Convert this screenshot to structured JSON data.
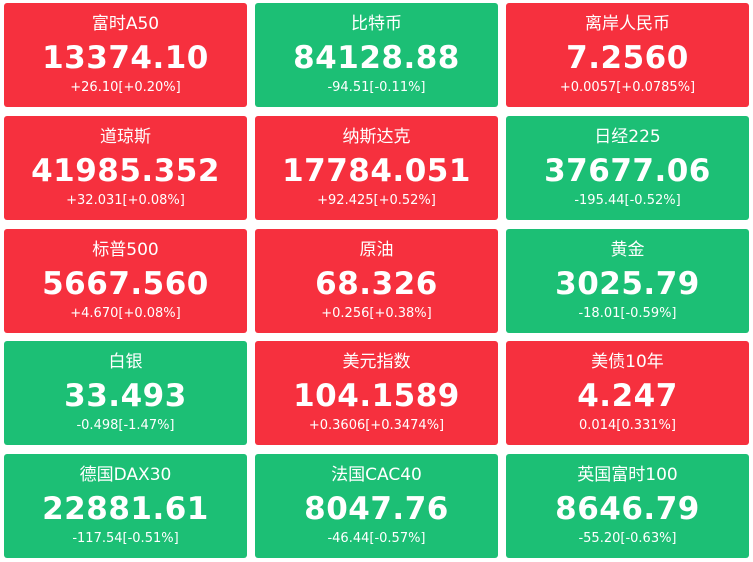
{
  "colors": {
    "up": "#f6303e",
    "down": "#1cbf75",
    "text": "#ffffff"
  },
  "cards": [
    {
      "name": "富时A50",
      "price": "13374.10",
      "change": "+26.10[+0.20%]",
      "trend": "up"
    },
    {
      "name": "比特币",
      "price": "84128.88",
      "change": "-94.51[-0.11%]",
      "trend": "down"
    },
    {
      "name": "离岸人民币",
      "price": "7.2560",
      "change": "+0.0057[+0.0785%]",
      "trend": "up"
    },
    {
      "name": "道琼斯",
      "price": "41985.352",
      "change": "+32.031[+0.08%]",
      "trend": "up"
    },
    {
      "name": "纳斯达克",
      "price": "17784.051",
      "change": "+92.425[+0.52%]",
      "trend": "up"
    },
    {
      "name": "日经225",
      "price": "37677.06",
      "change": "-195.44[-0.52%]",
      "trend": "down"
    },
    {
      "name": "标普500",
      "price": "5667.560",
      "change": "+4.670[+0.08%]",
      "trend": "up"
    },
    {
      "name": "原油",
      "price": "68.326",
      "change": "+0.256[+0.38%]",
      "trend": "up"
    },
    {
      "name": "黄金",
      "price": "3025.79",
      "change": "-18.01[-0.59%]",
      "trend": "down"
    },
    {
      "name": "白银",
      "price": "33.493",
      "change": "-0.498[-1.47%]",
      "trend": "down"
    },
    {
      "name": "美元指数",
      "price": "104.1589",
      "change": "+0.3606[+0.3474%]",
      "trend": "up"
    },
    {
      "name": "美债10年",
      "price": "4.247",
      "change": "0.014[0.331%]",
      "trend": "up"
    },
    {
      "name": "德国DAX30",
      "price": "22881.61",
      "change": "-117.54[-0.51%]",
      "trend": "down"
    },
    {
      "name": "法国CAC40",
      "price": "8047.76",
      "change": "-46.44[-0.57%]",
      "trend": "down"
    },
    {
      "name": "英国富时100",
      "price": "8646.79",
      "change": "-55.20[-0.63%]",
      "trend": "down"
    }
  ]
}
